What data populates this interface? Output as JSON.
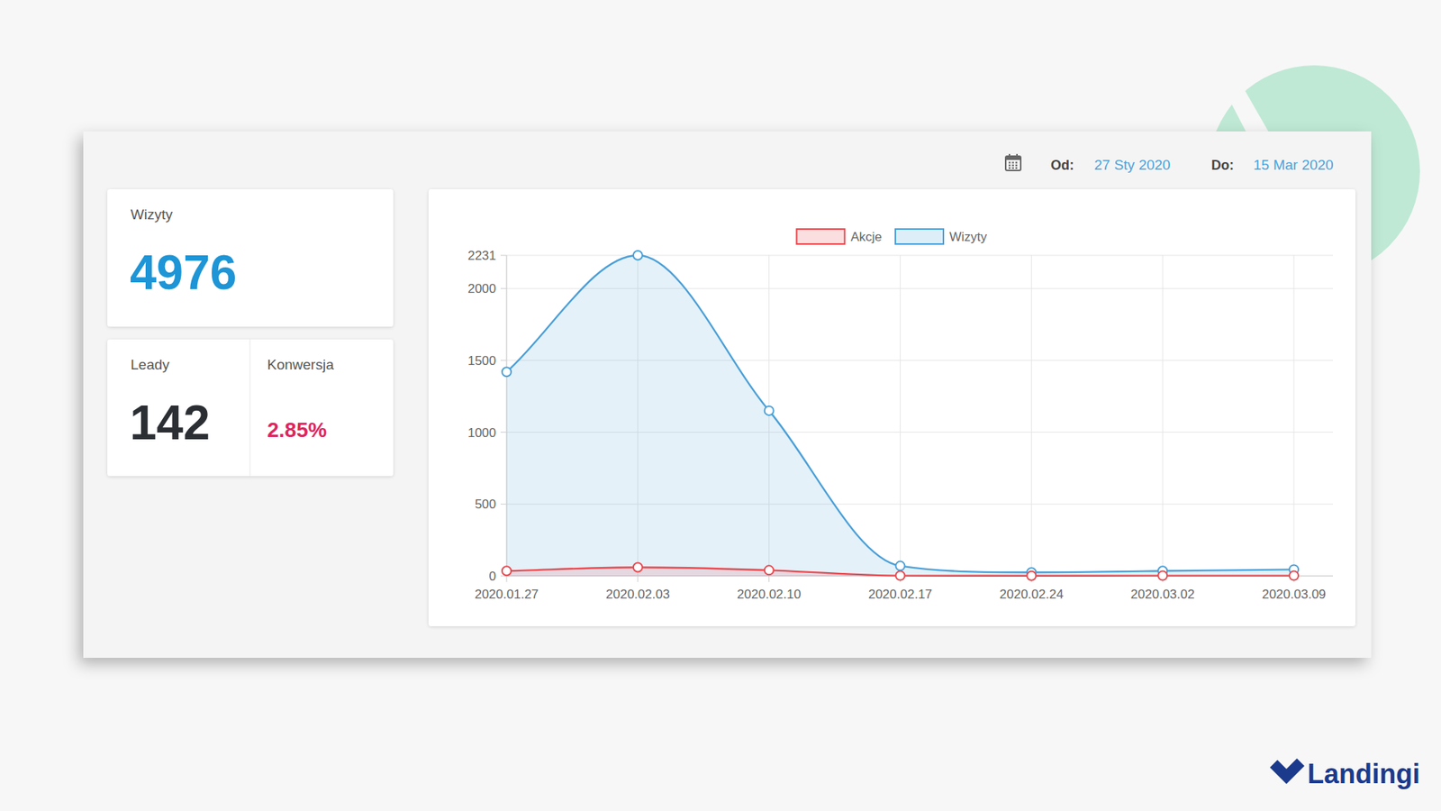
{
  "date_range": {
    "from_label": "Od:",
    "from": "27 Sty 2020",
    "to_label": "Do:",
    "to": "15 Mar 2020"
  },
  "cards": [
    {
      "label": "Wizyty",
      "value": 4976
    },
    {
      "label": "Leady",
      "value": 142
    },
    {
      "label": "Konwersja",
      "value": "2.85%"
    }
  ],
  "brand": "Landingi",
  "chart_data": {
    "type": "area",
    "categories": [
      "2020.01.27",
      "2020.02.03",
      "2020.02.10",
      "2020.02.17",
      "2020.02.24",
      "2020.03.02",
      "2020.03.09"
    ],
    "series": [
      {
        "name": "Akcje",
        "color": "#e8494f",
        "values": [
          35,
          60,
          40,
          2,
          1,
          2,
          2
        ]
      },
      {
        "name": "Wizyty",
        "color": "#4a9fd8",
        "values": [
          1420,
          2231,
          1150,
          70,
          25,
          35,
          45
        ]
      }
    ],
    "ylim": [
      0,
      2231
    ],
    "yticks": [
      0,
      500,
      1000,
      1500,
      2000,
      2231
    ],
    "grid": true,
    "legend": "top",
    "marker": "circle"
  }
}
